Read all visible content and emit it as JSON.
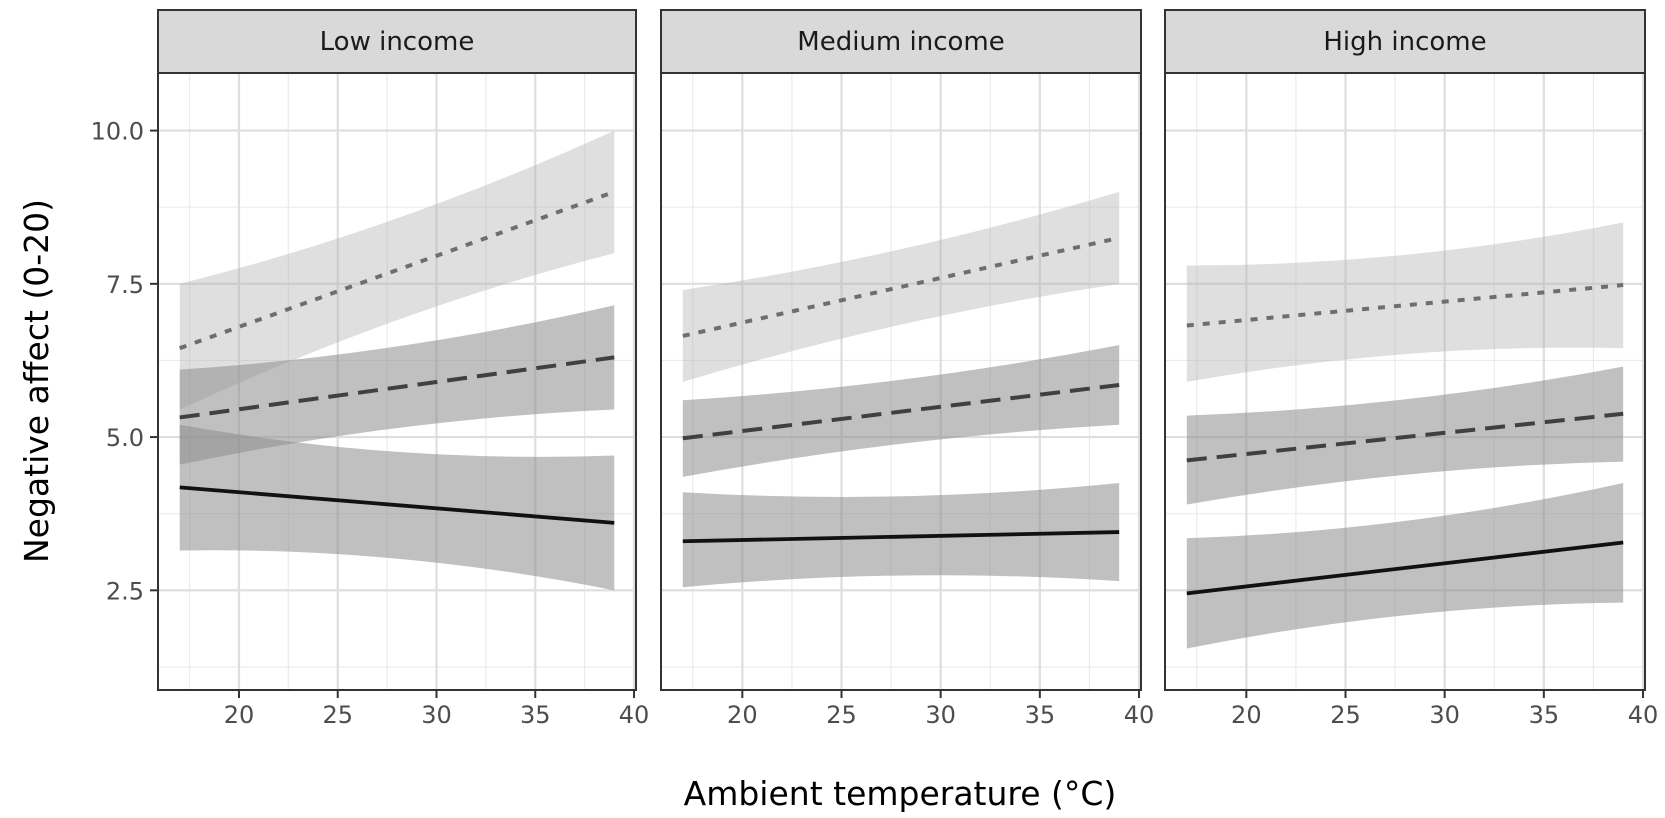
{
  "chart_data": {
    "type": "line",
    "xlabel": "Ambient temperature (°C)",
    "ylabel": "Negative affect (0-20)",
    "xlim": [
      15.9,
      40.1
    ],
    "ylim": [
      1.2,
      10.45
    ],
    "x_ticks": [
      20,
      25,
      30,
      35,
      40
    ],
    "y_ticks": [
      2.5,
      5.0,
      7.5,
      10.0
    ],
    "y_tick_labels": [
      "2.5",
      "5.0",
      "7.5",
      "10.0"
    ],
    "grid": true,
    "legend": "none",
    "x_range": [
      17,
      39
    ],
    "panels": [
      {
        "label": "Low income",
        "series": [
          {
            "style": "dotted",
            "y": [
              6.45,
              9.0
            ],
            "lower": [
              5.45,
              8.0
            ],
            "upper": [
              7.5,
              10.0
            ]
          },
          {
            "style": "dashed",
            "y": [
              5.32,
              6.3
            ],
            "lower": [
              4.55,
              5.45
            ],
            "upper": [
              6.1,
              7.15
            ]
          },
          {
            "style": "solid",
            "y": [
              4.18,
              3.6
            ],
            "lower": [
              3.15,
              2.5
            ],
            "upper": [
              5.2,
              4.7
            ]
          }
        ]
      },
      {
        "label": "Medium income",
        "series": [
          {
            "style": "dotted",
            "y": [
              6.65,
              8.25
            ],
            "lower": [
              5.9,
              7.5
            ],
            "upper": [
              7.4,
              9.0
            ]
          },
          {
            "style": "dashed",
            "y": [
              4.98,
              5.85
            ],
            "lower": [
              4.35,
              5.2
            ],
            "upper": [
              5.6,
              6.5
            ]
          },
          {
            "style": "solid",
            "y": [
              3.3,
              3.45
            ],
            "lower": [
              2.55,
              2.65
            ],
            "upper": [
              4.1,
              4.25
            ]
          }
        ]
      },
      {
        "label": "High income",
        "series": [
          {
            "style": "dotted",
            "y": [
              6.82,
              7.48
            ],
            "lower": [
              5.9,
              6.45
            ],
            "upper": [
              7.8,
              8.5
            ]
          },
          {
            "style": "dashed",
            "y": [
              4.62,
              5.38
            ],
            "lower": [
              3.9,
              4.6
            ],
            "upper": [
              5.35,
              6.15
            ]
          },
          {
            "style": "solid",
            "y": [
              2.45,
              3.28
            ],
            "lower": [
              1.55,
              2.3
            ],
            "upper": [
              3.35,
              4.25
            ]
          }
        ]
      }
    ]
  }
}
